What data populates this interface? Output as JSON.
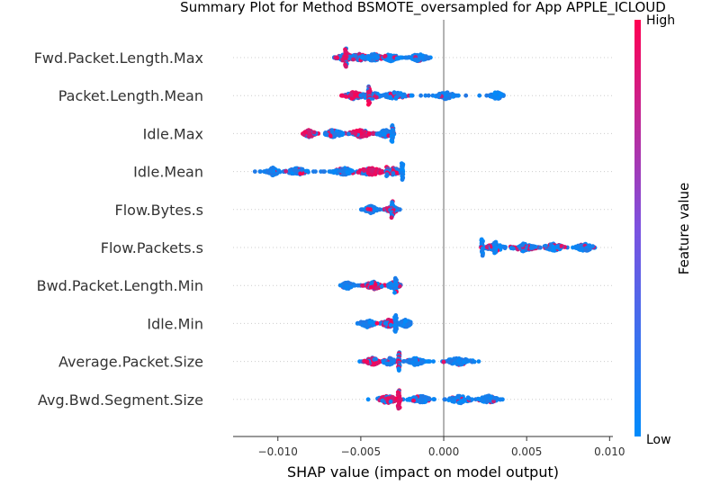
{
  "chart_data": {
    "type": "scatter",
    "subtype": "shap-beeswarm",
    "title": "Summary Plot for Method BSMOTE_oversampled for App APPLE_ICLOUD",
    "xlabel": "SHAP value (impact on model output)",
    "xlim": [
      -0.0127,
      0.0102
    ],
    "xticks": [
      {
        "value": -0.01,
        "label": "−0.010"
      },
      {
        "value": -0.005,
        "label": "−0.005"
      },
      {
        "value": 0.0,
        "label": "0.000"
      },
      {
        "value": 0.005,
        "label": "0.005"
      },
      {
        "value": 0.01,
        "label": "0.010"
      }
    ],
    "grid": false,
    "colorbar": {
      "label": "Feature value",
      "high": "High",
      "low": "Low",
      "high_color": "#ff0052",
      "low_color": "#008bfb"
    },
    "features": [
      {
        "name": "Fwd.Packet.Length.Max",
        "min": -0.0066,
        "max": -0.0007,
        "clusters": [
          {
            "x": -0.0059,
            "w": 0.0006,
            "c": 0.6
          },
          {
            "x": -0.0051,
            "w": 0.0006,
            "c": 0.2
          },
          {
            "x": -0.0042,
            "w": 0.0006,
            "c": 0.15
          },
          {
            "x": -0.0032,
            "w": 0.0005,
            "c": 0.1
          },
          {
            "x": -0.0015,
            "w": 0.0006,
            "c": 0.05
          }
        ],
        "spikes": [
          {
            "x": -0.0059,
            "h": 20,
            "c": 0.85
          }
        ]
      },
      {
        "name": "Packet.Length.Mean",
        "min": -0.0062,
        "max": 0.0036,
        "clusters": [
          {
            "x": -0.0054,
            "w": 0.0006,
            "c": 0.8
          },
          {
            "x": -0.0044,
            "w": 0.0006,
            "c": 0.25
          },
          {
            "x": -0.0029,
            "w": 0.0007,
            "c": 0.1
          },
          {
            "x": 0.0001,
            "w": 0.0006,
            "c": 0.05
          },
          {
            "x": 0.0032,
            "w": 0.0004,
            "c": 0.05
          }
        ],
        "spikes": [
          {
            "x": -0.0045,
            "h": 19,
            "c": 0.75
          }
        ]
      },
      {
        "name": "Idle.Max",
        "min": -0.0085,
        "max": -0.003,
        "clusters": [
          {
            "x": -0.0081,
            "w": 0.0004,
            "c": 0.7
          },
          {
            "x": -0.0067,
            "w": 0.0007,
            "c": 0.3
          },
          {
            "x": -0.005,
            "w": 0.0008,
            "c": 0.75
          },
          {
            "x": -0.0035,
            "w": 0.0005,
            "c": 0.15
          }
        ],
        "spikes": [
          {
            "x": -0.0031,
            "h": 18,
            "c": 0.05
          }
        ]
      },
      {
        "name": "Idle.Mean",
        "min": -0.0114,
        "max": -0.0024,
        "clusters": [
          {
            "x": -0.0103,
            "w": 0.0004,
            "c": 0.05
          },
          {
            "x": -0.0088,
            "w": 0.0007,
            "c": 0.15
          },
          {
            "x": -0.006,
            "w": 0.0007,
            "c": 0.2
          },
          {
            "x": -0.0044,
            "w": 0.0008,
            "c": 0.8
          },
          {
            "x": -0.003,
            "w": 0.0005,
            "c": 0.4
          }
        ],
        "spikes": [
          {
            "x": -0.0025,
            "h": 17,
            "c": 0.05
          },
          {
            "x": -0.0034,
            "h": 10,
            "c": 0.7
          }
        ]
      },
      {
        "name": "Flow.Bytes.s",
        "min": -0.005,
        "max": -0.0025,
        "clusters": [
          {
            "x": -0.0044,
            "w": 0.0004,
            "c": 0.1
          },
          {
            "x": -0.0031,
            "w": 0.0004,
            "c": 0.5
          }
        ],
        "spikes": [
          {
            "x": -0.0031,
            "h": 17,
            "c": 0.1
          }
        ]
      },
      {
        "name": "Flow.Packets.s",
        "min": 0.002,
        "max": 0.0095,
        "clusters": [
          {
            "x": 0.0031,
            "w": 0.0006,
            "c": 0.25
          },
          {
            "x": 0.0048,
            "w": 0.0008,
            "c": 0.5
          },
          {
            "x": 0.0066,
            "w": 0.0007,
            "c": 0.2
          },
          {
            "x": 0.0085,
            "w": 0.0006,
            "c": 0.05
          }
        ],
        "spikes": [
          {
            "x": 0.0023,
            "h": 18,
            "c": 0.05
          },
          {
            "x": 0.0031,
            "h": 12,
            "c": 0.05
          }
        ]
      },
      {
        "name": "Bwd.Packet.Length.Min",
        "min": -0.0064,
        "max": -0.0026,
        "clusters": [
          {
            "x": -0.0058,
            "w": 0.0004,
            "c": 0.05
          },
          {
            "x": -0.0042,
            "w": 0.0006,
            "c": 0.7
          },
          {
            "x": -0.003,
            "w": 0.0004,
            "c": 0.3
          }
        ],
        "spikes": [
          {
            "x": -0.0029,
            "h": 16,
            "c": 0.05
          }
        ]
      },
      {
        "name": "Idle.Min",
        "min": -0.0052,
        "max": -0.002,
        "clusters": [
          {
            "x": -0.0046,
            "w": 0.0005,
            "c": 0.05
          },
          {
            "x": -0.0033,
            "w": 0.0005,
            "c": 0.6
          },
          {
            "x": -0.0023,
            "w": 0.0004,
            "c": 0.05
          }
        ],
        "spikes": [
          {
            "x": -0.0029,
            "h": 18,
            "c": 0.05
          }
        ]
      },
      {
        "name": "Average.Packet.Size",
        "min": -0.0051,
        "max": 0.0022,
        "clusters": [
          {
            "x": -0.0043,
            "w": 0.0005,
            "c": 0.7
          },
          {
            "x": -0.0033,
            "w": 0.0004,
            "c": 0.2
          },
          {
            "x": -0.0017,
            "w": 0.0006,
            "c": 0.05
          },
          {
            "x": 0.0009,
            "w": 0.0009,
            "c": 0.05
          }
        ],
        "spikes": [
          {
            "x": -0.0027,
            "h": 19,
            "c": 0.3
          }
        ]
      },
      {
        "name": "Avg.Bwd.Segment.Size",
        "min": -0.0049,
        "max": 0.0037,
        "clusters": [
          {
            "x": -0.0034,
            "w": 0.0007,
            "c": 0.75
          },
          {
            "x": -0.0014,
            "w": 0.0007,
            "c": 0.1
          },
          {
            "x": 0.001,
            "w": 0.0008,
            "c": 0.1
          },
          {
            "x": 0.0027,
            "w": 0.0006,
            "c": 0.05
          }
        ],
        "spikes": [
          {
            "x": -0.0027,
            "h": 19,
            "c": 0.75
          }
        ]
      }
    ]
  }
}
